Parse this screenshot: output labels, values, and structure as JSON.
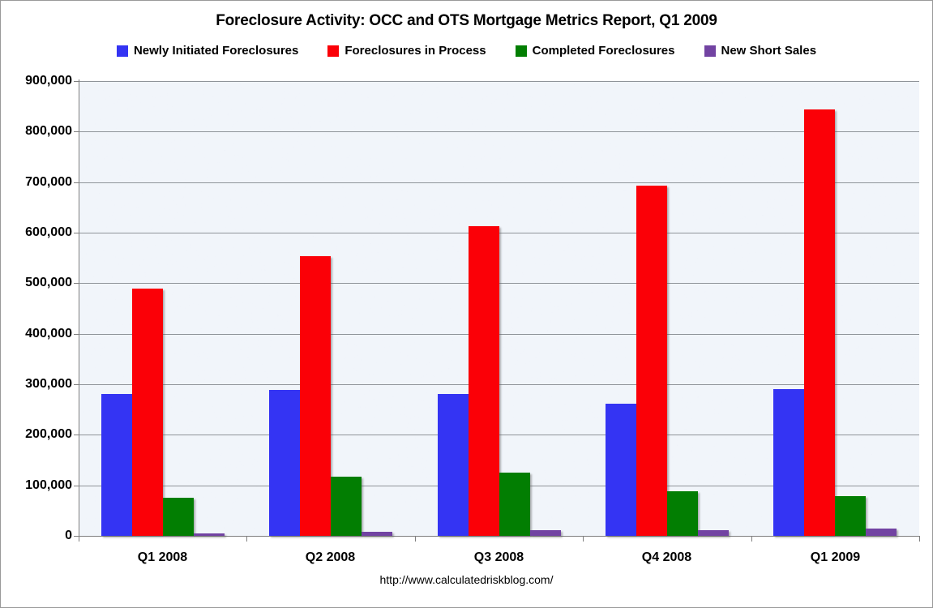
{
  "title": "Foreclosure Activity: OCC and OTS Mortgage Metrics Report, Q1 2009",
  "footer_url": "http://www.calculatedriskblog.com/",
  "colors": {
    "plot_bg": "#e7edf6",
    "gridline": "#8f9499",
    "axis": "#7f7f7f",
    "text": "#000000",
    "series_blue": "#3434f3",
    "series_red": "#fb0007",
    "series_green": "#027e02",
    "series_purple": "#7243a2"
  },
  "chart_data": {
    "type": "bar",
    "title": "Foreclosure Activity: OCC and OTS Mortgage Metrics Report, Q1 2009",
    "categories": [
      "Q1 2008",
      "Q2 2008",
      "Q3 2008",
      "Q4 2008",
      "Q1 2009"
    ],
    "series": [
      {
        "name": "Newly Initiated Foreclosures",
        "color": "#3434f3",
        "values": [
          280000,
          288000,
          281000,
          262000,
          290000
        ]
      },
      {
        "name": "Foreclosures in Process",
        "color": "#fb0007",
        "values": [
          490000,
          553000,
          613000,
          693000,
          844000
        ]
      },
      {
        "name": "Completed Foreclosures",
        "color": "#027e02",
        "values": [
          76000,
          117000,
          125000,
          88000,
          78000
        ]
      },
      {
        "name": "New Short Sales",
        "color": "#7243a2",
        "values": [
          5000,
          8000,
          11000,
          12000,
          15000
        ]
      }
    ],
    "xlabel": "",
    "ylabel": "",
    "ylim": [
      0,
      900000
    ],
    "ytick_interval": 100000,
    "ytick_labels": [
      "0",
      "100,000",
      "200,000",
      "300,000",
      "400,000",
      "500,000",
      "600,000",
      "700,000",
      "800,000",
      "900,000"
    ],
    "grid": true,
    "legend_position": "top",
    "annotation": "http://www.calculatedriskblog.com/"
  }
}
